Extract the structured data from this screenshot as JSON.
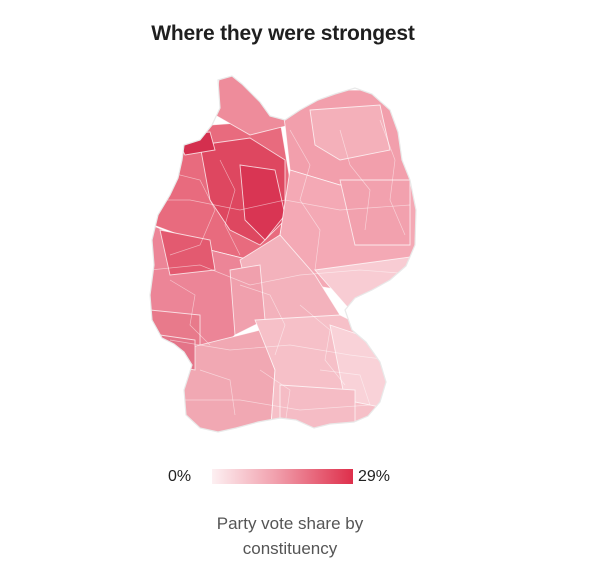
{
  "title": "Where they were strongest",
  "legend": {
    "min_label": "0%",
    "max_label": "29%",
    "min_color": "#fdf0f2",
    "max_color": "#de2f4b"
  },
  "caption": "Party vote share by constituency",
  "colors": {
    "background": "#ffffff",
    "border": "#ffffff",
    "low": "#f6c3ca",
    "mid": "#ec8a99",
    "high": "#de2f4b"
  }
}
